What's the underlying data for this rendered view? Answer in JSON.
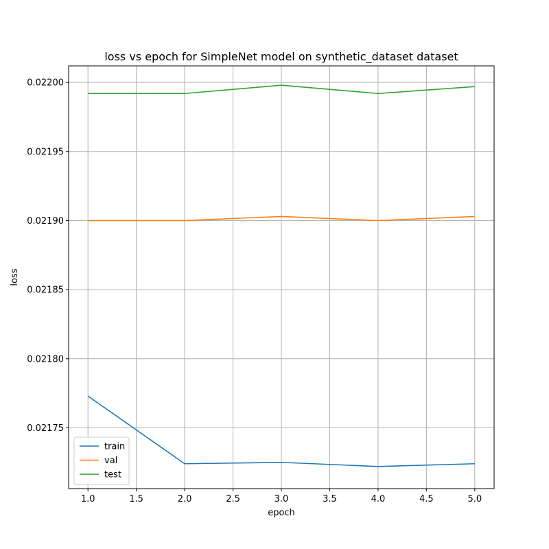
{
  "chart_data": {
    "type": "line",
    "title": "loss vs epoch for SimpleNet model on synthetic_dataset dataset",
    "xlabel": "epoch",
    "ylabel": "loss",
    "xlim": [
      0.8,
      5.2
    ],
    "ylim": [
      0.021706,
      0.022012
    ],
    "xticks": [
      1.0,
      1.5,
      2.0,
      2.5,
      3.0,
      3.5,
      4.0,
      4.5,
      5.0
    ],
    "xtick_labels": [
      "1.0",
      "1.5",
      "2.0",
      "2.5",
      "3.0",
      "3.5",
      "4.0",
      "4.5",
      "5.0"
    ],
    "yticks": [
      0.02175,
      0.0218,
      0.02185,
      0.0219,
      0.02195,
      0.022
    ],
    "ytick_labels": [
      "0.02175",
      "0.02180",
      "0.02185",
      "0.02190",
      "0.02195",
      "0.02200"
    ],
    "grid": true,
    "legend_position": "lower-left",
    "x": [
      1,
      2,
      3,
      4,
      5
    ],
    "series": [
      {
        "name": "train",
        "color": "#1f77b4",
        "values": [
          0.021773,
          0.021724,
          0.021725,
          0.021722,
          0.021724
        ]
      },
      {
        "name": "val",
        "color": "#ff7f0e",
        "values": [
          0.0219,
          0.0219,
          0.021903,
          0.0219,
          0.021903
        ]
      },
      {
        "name": "test",
        "color": "#2ca02c",
        "values": [
          0.021992,
          0.021992,
          0.021998,
          0.021992,
          0.021997
        ]
      }
    ]
  }
}
